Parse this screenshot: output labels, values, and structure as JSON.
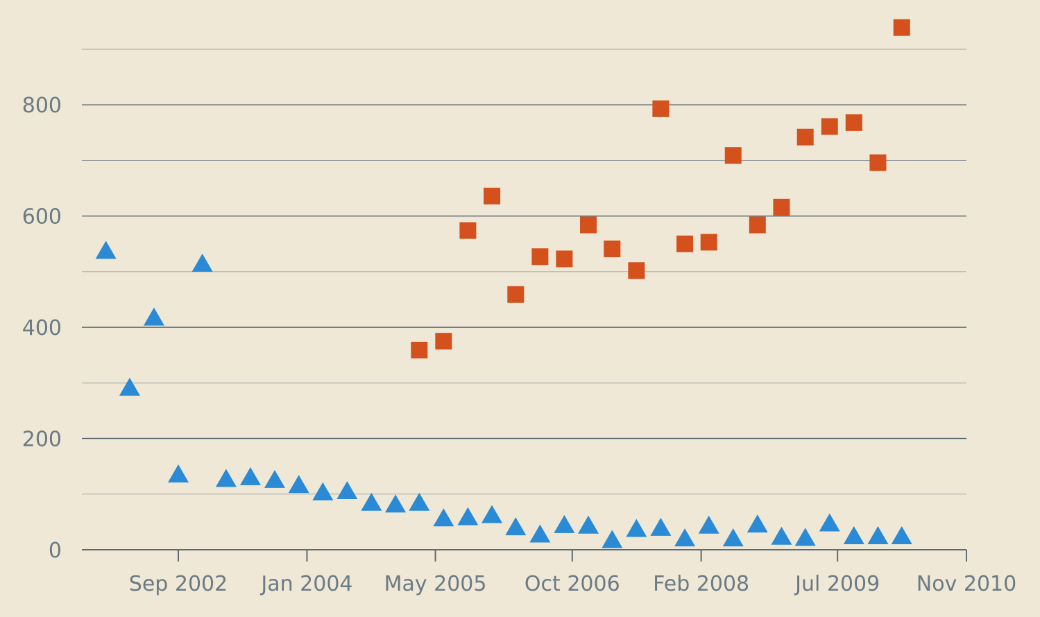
{
  "chart_data": {
    "type": "scatter",
    "title": "",
    "xlabel": "",
    "ylabel": "",
    "ylim": [
      0,
      900
    ],
    "xlim": [
      "2001-09-01",
      "2010-11-01"
    ],
    "y_ticks": [
      0,
      200,
      400,
      600,
      800
    ],
    "y_tick_labels": [
      "0",
      "200",
      "400",
      "600",
      "800"
    ],
    "x_ticks": [
      "2002-09-01",
      "2004-01-01",
      "2005-05-01",
      "2006-10-01",
      "2008-02-01",
      "2009-07-01",
      "2010-11-01"
    ],
    "x_tick_labels": [
      "Sep 2002",
      "Jan 2004",
      "May 2005",
      "Oct 2006",
      "Feb 2008",
      "Jul 2009",
      "Nov 2010"
    ],
    "grid": true,
    "legend": "none",
    "series": [
      {
        "marker": "triangle",
        "color": "#2a8ad6",
        "points": [
          [
            "2001-12-01",
            538
          ],
          [
            "2002-03-01",
            292
          ],
          [
            "2002-06-01",
            418
          ],
          [
            "2002-09-01",
            136
          ],
          [
            "2002-12-01",
            515
          ],
          [
            "2003-03-01",
            128
          ],
          [
            "2003-06-01",
            131
          ],
          [
            "2003-09-01",
            126
          ],
          [
            "2003-12-01",
            117
          ],
          [
            "2004-03-01",
            104
          ],
          [
            "2004-06-01",
            106
          ],
          [
            "2004-09-01",
            85
          ],
          [
            "2004-12-01",
            82
          ],
          [
            "2005-03-01",
            85
          ],
          [
            "2005-06-01",
            57
          ],
          [
            "2005-09-01",
            59
          ],
          [
            "2005-12-01",
            63
          ],
          [
            "2006-03-01",
            41
          ],
          [
            "2006-06-01",
            28
          ],
          [
            "2006-09-01",
            45
          ],
          [
            "2006-12-01",
            44
          ],
          [
            "2007-03-01",
            18
          ],
          [
            "2007-06-01",
            38
          ],
          [
            "2007-09-01",
            40
          ],
          [
            "2007-12-01",
            21
          ],
          [
            "2008-03-01",
            44
          ],
          [
            "2008-06-01",
            21
          ],
          [
            "2008-09-01",
            46
          ],
          [
            "2008-12-01",
            24
          ],
          [
            "2009-03-01",
            22
          ],
          [
            "2009-06-01",
            48
          ],
          [
            "2009-09-01",
            25
          ],
          [
            "2009-12-01",
            25
          ],
          [
            "2010-03-01",
            25
          ]
        ]
      },
      {
        "marker": "square",
        "color": "#d4501c",
        "points": [
          [
            "2005-03-01",
            359
          ],
          [
            "2005-06-01",
            375
          ],
          [
            "2005-09-01",
            574
          ],
          [
            "2005-12-01",
            636
          ],
          [
            "2006-03-01",
            459
          ],
          [
            "2006-06-01",
            527
          ],
          [
            "2006-09-01",
            523
          ],
          [
            "2006-12-01",
            584
          ],
          [
            "2007-03-01",
            541
          ],
          [
            "2007-06-01",
            502
          ],
          [
            "2007-09-01",
            793
          ],
          [
            "2007-12-01",
            550
          ],
          [
            "2008-03-01",
            553
          ],
          [
            "2008-06-01",
            709
          ],
          [
            "2008-09-01",
            584
          ],
          [
            "2008-12-01",
            616
          ],
          [
            "2009-03-01",
            742
          ],
          [
            "2009-06-01",
            761
          ],
          [
            "2009-09-01",
            768
          ],
          [
            "2009-12-01",
            696
          ],
          [
            "2010-03-01",
            939
          ]
        ]
      }
    ]
  }
}
